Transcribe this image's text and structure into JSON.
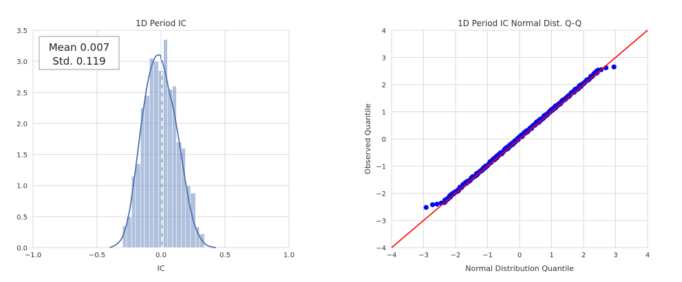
{
  "chart_data": [
    {
      "type": "histogram",
      "title": "1D Period IC",
      "xlabel": "IC",
      "ylabel": "",
      "xlim": [
        -1.0,
        1.0
      ],
      "ylim": [
        0.0,
        3.5
      ],
      "xticks": [
        "−1.0",
        "−0.5",
        "0.0",
        "0.5",
        "1.0"
      ],
      "xtick_values": [
        -1.0,
        -0.5,
        0.0,
        0.5,
        1.0
      ],
      "yticks": [
        "0.0",
        "0.5",
        "1.0",
        "1.5",
        "2.0",
        "2.5",
        "3.0",
        "3.5"
      ],
      "ytick_values": [
        0.0,
        0.5,
        1.0,
        1.5,
        2.0,
        2.5,
        3.0,
        3.5
      ],
      "grid": true,
      "bins": [
        {
          "x0": -0.3,
          "x1": -0.27,
          "value": 0.35
        },
        {
          "x0": -0.27,
          "x1": -0.23,
          "value": 0.5
        },
        {
          "x0": -0.23,
          "x1": -0.2,
          "value": 1.15
        },
        {
          "x0": -0.2,
          "x1": -0.16,
          "value": 1.35
        },
        {
          "x0": -0.16,
          "x1": -0.13,
          "value": 2.25
        },
        {
          "x0": -0.13,
          "x1": -0.09,
          "value": 2.45
        },
        {
          "x0": -0.09,
          "x1": -0.06,
          "value": 3.05
        },
        {
          "x0": -0.06,
          "x1": -0.02,
          "value": 3.0
        },
        {
          "x0": -0.02,
          "x1": 0.02,
          "value": 2.85
        },
        {
          "x0": 0.02,
          "x1": 0.05,
          "value": 3.35
        },
        {
          "x0": 0.05,
          "x1": 0.09,
          "value": 2.55
        },
        {
          "x0": 0.09,
          "x1": 0.12,
          "value": 2.6
        },
        {
          "x0": 0.12,
          "x1": 0.16,
          "value": 1.7
        },
        {
          "x0": 0.16,
          "x1": 0.19,
          "value": 1.6
        },
        {
          "x0": 0.19,
          "x1": 0.23,
          "value": 1.0
        },
        {
          "x0": 0.23,
          "x1": 0.27,
          "value": 0.88
        },
        {
          "x0": 0.27,
          "x1": 0.3,
          "value": 0.33
        },
        {
          "x0": 0.3,
          "x1": 0.34,
          "value": 0.22
        }
      ],
      "kde": {
        "x": [
          -0.4,
          -0.35,
          -0.3,
          -0.25,
          -0.2,
          -0.15,
          -0.1,
          -0.05,
          -0.01,
          0.0,
          0.03,
          0.06,
          0.1,
          0.15,
          0.2,
          0.25,
          0.3,
          0.35,
          0.4,
          0.43
        ],
        "y": [
          0.0,
          0.05,
          0.18,
          0.55,
          1.25,
          2.05,
          2.7,
          3.05,
          3.1,
          3.05,
          2.85,
          2.55,
          2.2,
          1.6,
          0.95,
          0.45,
          0.18,
          0.05,
          0.01,
          0.0
        ]
      },
      "mean_line_x": 0.007,
      "annotation": {
        "mean_label": "Mean 0.007",
        "std_label": "Std. 0.119"
      },
      "colors": {
        "bars": "#6f8ec1",
        "kde": "#4c72b0",
        "mean_line": "#ffffff"
      }
    },
    {
      "type": "scatter",
      "title": "1D Period IC Normal Dist. Q-Q",
      "xlabel": "Normal Distribution Quantile",
      "ylabel": "Observed Quantile",
      "xlim": [
        -4,
        4
      ],
      "ylim": [
        -4,
        4
      ],
      "xticks": [
        "−4",
        "−3",
        "−2",
        "−1",
        "0",
        "1",
        "2",
        "3",
        "4"
      ],
      "xtick_values": [
        -4,
        -3,
        -2,
        -1,
        0,
        1,
        2,
        3,
        4
      ],
      "yticks": [
        "−4",
        "−3",
        "−2",
        "−1",
        "0",
        "1",
        "2",
        "3",
        "4"
      ],
      "ytick_values": [
        -4,
        -3,
        -2,
        -1,
        0,
        1,
        2,
        3,
        4
      ],
      "grid": true,
      "reference_line": {
        "x": [
          -4,
          4
        ],
        "y": [
          -4,
          4
        ]
      },
      "outliers": [
        {
          "x": -2.92,
          "y": -2.52
        },
        {
          "x": -2.72,
          "y": -2.42
        },
        {
          "x": -2.58,
          "y": -2.4
        },
        {
          "x": -2.45,
          "y": -2.36
        },
        {
          "x": 2.55,
          "y": 2.55
        },
        {
          "x": 2.7,
          "y": 2.62
        },
        {
          "x": 2.95,
          "y": 2.65
        }
      ],
      "dense_range": {
        "x": [
          -2.35,
          2.45
        ]
      },
      "colors": {
        "points": "#0000ff",
        "point_edge": "#1010d0",
        "line": "#ff0000"
      }
    }
  ]
}
